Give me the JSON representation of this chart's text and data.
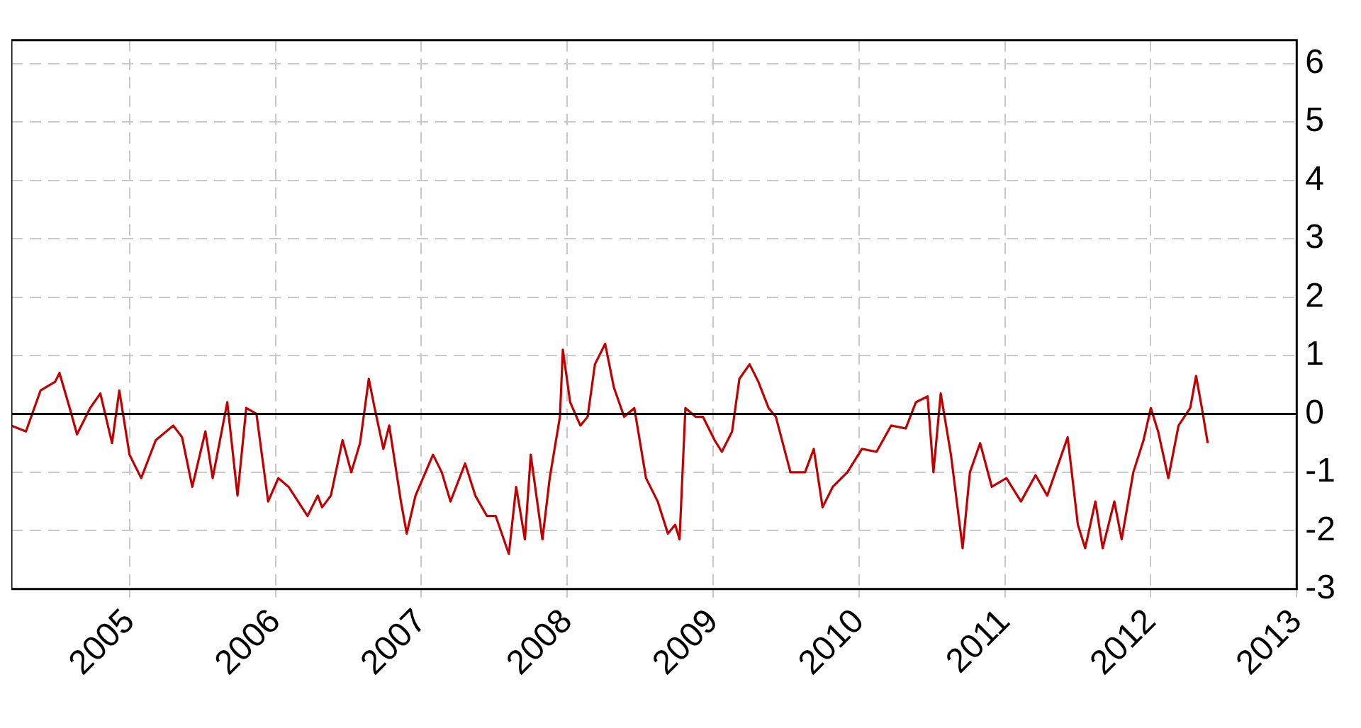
{
  "chart_data": {
    "type": "line",
    "x": [
      2004.19,
      2004.29,
      2004.39,
      2004.49,
      2004.52,
      2004.59,
      2004.64,
      2004.73,
      2004.8,
      2004.88,
      2004.93,
      2005.0,
      2005.08,
      2005.18,
      2005.3,
      2005.36,
      2005.43,
      2005.52,
      2005.57,
      2005.67,
      2005.74,
      2005.8,
      2005.87,
      2005.95,
      2006.02,
      2006.09,
      2006.22,
      2006.29,
      2006.32,
      2006.38,
      2006.46,
      2006.52,
      2006.58,
      2006.64,
      2006.68,
      2006.74,
      2006.78,
      2006.86,
      2006.9,
      2006.96,
      2007.08,
      2007.14,
      2007.2,
      2007.3,
      2007.37,
      2007.45,
      2007.51,
      2007.6,
      2007.65,
      2007.71,
      2007.75,
      2007.83,
      2007.88,
      2007.95,
      2007.97,
      2008.02,
      2008.09,
      2008.14,
      2008.19,
      2008.26,
      2008.32,
      2008.39,
      2008.46,
      2008.54,
      2008.62,
      2008.69,
      2008.74,
      2008.77,
      2008.81,
      2008.88,
      2008.93,
      2009.01,
      2009.06,
      2009.13,
      2009.18,
      2009.25,
      2009.31,
      2009.38,
      2009.43,
      2009.53,
      2009.63,
      2009.69,
      2009.75,
      2009.82,
      2009.92,
      2010.02,
      2010.12,
      2010.22,
      2010.32,
      2010.39,
      2010.47,
      2010.51,
      2010.56,
      2010.63,
      2010.71,
      2010.76,
      2010.83,
      2010.91,
      2011.01,
      2011.11,
      2011.21,
      2011.29,
      2011.36,
      2011.43,
      2011.5,
      2011.55,
      2011.62,
      2011.67,
      2011.75,
      2011.8,
      2011.88,
      2011.95,
      2012.0,
      2012.05,
      2012.12,
      2012.19,
      2012.27,
      2012.31,
      2012.35,
      2012.39
    ],
    "series": [
      {
        "color": "#c00000",
        "values": [
          -0.2,
          -0.3,
          0.4,
          0.55,
          0.7,
          0.1,
          -0.35,
          0.1,
          0.35,
          -0.5,
          0.4,
          -0.7,
          -1.1,
          -0.45,
          -0.2,
          -0.4,
          -1.25,
          -0.3,
          -1.1,
          0.2,
          -1.4,
          0.1,
          0,
          -1.5,
          -1.1,
          -1.25,
          -1.75,
          -1.4,
          -1.6,
          -1.4,
          -0.45,
          -1.0,
          -0.5,
          0.6,
          0.1,
          -0.6,
          -0.2,
          -1.5,
          -2.05,
          -1.4,
          -0.7,
          -1.0,
          -1.5,
          -0.85,
          -1.4,
          -1.75,
          -1.75,
          -2.4,
          -1.25,
          -2.15,
          -0.7,
          -2.15,
          -1.1,
          -0.05,
          1.1,
          0.2,
          -0.2,
          -0.05,
          0.85,
          1.2,
          0.45,
          -0.05,
          0.1,
          -1.1,
          -1.5,
          -2.05,
          -1.9,
          -2.15,
          0.1,
          -0.05,
          -0.05,
          -0.45,
          -0.65,
          -0.3,
          0.6,
          0.85,
          0.55,
          0.1,
          -0.05,
          -1.0,
          -1.0,
          -0.6,
          -1.6,
          -1.25,
          -1.0,
          -0.6,
          -0.65,
          -0.2,
          -0.25,
          0.2,
          0.3,
          -1.0,
          0.35,
          -0.7,
          -2.3,
          -1.0,
          -0.5,
          -1.25,
          -1.1,
          -1.5,
          -1.05,
          -1.4,
          -0.9,
          -0.4,
          -1.9,
          -2.3,
          -1.5,
          -2.3,
          -1.5,
          -2.15,
          -1.0,
          -0.45,
          0.1,
          -0.3,
          -1.1,
          -0.2,
          0.1,
          0.65,
          0.1,
          -0.5
        ]
      }
    ],
    "xlim": [
      2004.19,
      2013
    ],
    "xticks": [
      2005,
      2006,
      2007,
      2008,
      2009,
      2010,
      2011,
      2012,
      2013
    ],
    "ylim": [
      -3,
      6.4
    ],
    "yticks": [
      -3,
      -2,
      -1,
      0,
      1,
      2,
      3,
      4,
      5,
      6
    ],
    "ref_lines": [
      {
        "axis": "y",
        "value": 0,
        "color": "#000000"
      }
    ],
    "grid": true,
    "legend": false,
    "marker": "none",
    "line_style": "solid"
  }
}
